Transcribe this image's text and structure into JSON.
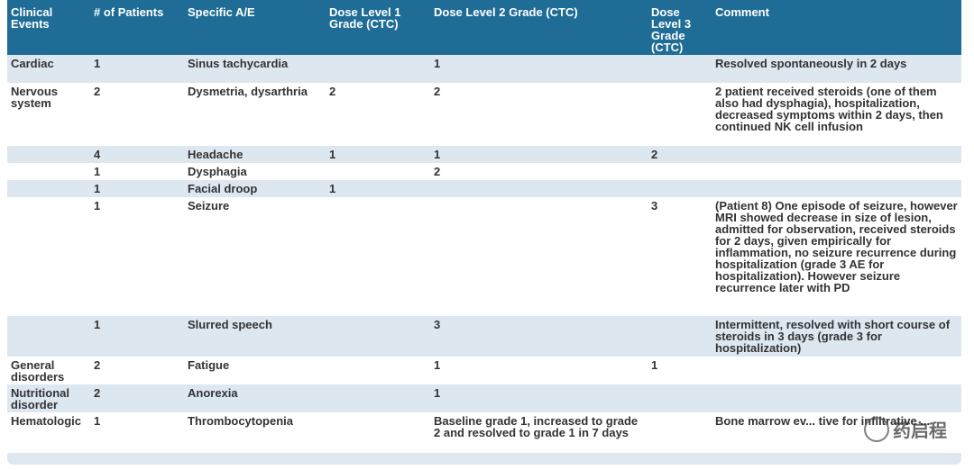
{
  "headers": [
    "Clinical Events",
    "# of Patients",
    "Specific A/E",
    "Dose Level 1 Grade (CTC)",
    "Dose Level 2 Grade (CTC)",
    "Dose Level 3 Grade (CTC)",
    "Comment"
  ],
  "rows": [
    {
      "event": "Cardiac",
      "patients": "1",
      "ae": "Sinus tachycardia",
      "dl1": "",
      "dl2": "1",
      "dl3": "",
      "comment": "Resolved spontaneously in 2 days"
    },
    {
      "event": "Nervous system",
      "patients": "2",
      "ae": "Dysmetria, dysarthria",
      "dl1": "2",
      "dl2": "2",
      "dl3": "",
      "comment": "2 patient received steroids (one of them also had dysphagia), hospitalization, decreased symptoms within 2 days, then continued NK cell infusion"
    },
    {
      "event": "",
      "patients": "4",
      "ae": "Headache",
      "dl1": "1",
      "dl2": "1",
      "dl3": "2",
      "comment": ""
    },
    {
      "event": "",
      "patients": "1",
      "ae": "Dysphagia",
      "dl1": "",
      "dl2": "2",
      "dl3": "",
      "comment": ""
    },
    {
      "event": "",
      "patients": "1",
      "ae": "Facial droop",
      "dl1": "1",
      "dl2": "",
      "dl3": "",
      "comment": ""
    },
    {
      "event": "",
      "patients": "1",
      "ae": "Seizure",
      "dl1": "",
      "dl2": "",
      "dl3": "3",
      "comment": "(Patient 8) One episode of seizure, however MRI showed decrease in size of lesion, admitted for observation, received steroids for 2 days, given empirically for inflammation, no seizure recurrence during hospitalization (grade 3 AE for hospitalization). However seizure recurrence later with PD"
    },
    {
      "event": "",
      "patients": "1",
      "ae": "Slurred speech",
      "dl1": "",
      "dl2": "3",
      "dl3": "",
      "comment": "Intermittent, resolved with short course of steroids in 3 days (grade 3 for hospitalization)"
    },
    {
      "event": "General disorders",
      "patients": "2",
      "ae": "Fatigue",
      "dl1": "",
      "dl2": "1",
      "dl3": "1",
      "comment": ""
    },
    {
      "event": "Nutritional disorder",
      "patients": "2",
      "ae": "Anorexia",
      "dl1": "",
      "dl2": "1",
      "dl3": "",
      "comment": ""
    },
    {
      "event": "Hematologic",
      "patients": "1",
      "ae": "Thrombocytopenia",
      "dl1": "",
      "dl2": "Baseline grade 1, increased to grade 2 and resolved to grade 1 in 7 days",
      "dl3": "",
      "comment": "Bone marrow ev... tive for infiltrative ..."
    }
  ],
  "watermark": "药启程"
}
